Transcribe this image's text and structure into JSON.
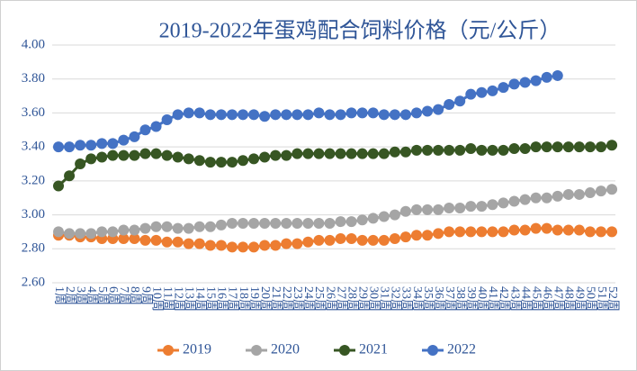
{
  "chart_data": {
    "type": "line",
    "title": "2019-2022年蛋鸡配合饲料价格（元/公斤）",
    "categories": [
      "1周",
      "2周",
      "3周",
      "4周",
      "5周",
      "6周",
      "7周",
      "8周",
      "9周",
      "10周",
      "11周",
      "12周",
      "13周",
      "14周",
      "15周",
      "16周",
      "17周",
      "18周",
      "19周",
      "20周",
      "21周",
      "22周",
      "23周",
      "24周",
      "25周",
      "26周",
      "27周",
      "28周",
      "29周",
      "30周",
      "31周",
      "32周",
      "33周",
      "34周",
      "35周",
      "36周",
      "37周",
      "38周",
      "39周",
      "40周",
      "41周",
      "42周",
      "43周",
      "44周",
      "45周",
      "46周",
      "47周",
      "48周",
      "49周",
      "50周",
      "51周",
      "52周"
    ],
    "series": [
      {
        "name": "2019",
        "color": "#ed7d31",
        "values": [
          2.88,
          2.88,
          2.87,
          2.87,
          2.86,
          2.86,
          2.86,
          2.86,
          2.85,
          2.85,
          2.84,
          2.84,
          2.83,
          2.83,
          2.82,
          2.82,
          2.81,
          2.81,
          2.81,
          2.82,
          2.82,
          2.83,
          2.83,
          2.84,
          2.85,
          2.85,
          2.86,
          2.86,
          2.85,
          2.85,
          2.85,
          2.86,
          2.87,
          2.88,
          2.88,
          2.89,
          2.9,
          2.9,
          2.9,
          2.9,
          2.9,
          2.9,
          2.91,
          2.91,
          2.92,
          2.92,
          2.91,
          2.91,
          2.91,
          2.9,
          2.9,
          2.9
        ]
      },
      {
        "name": "2020",
        "color": "#a5a5a5",
        "values": [
          2.9,
          2.89,
          2.89,
          2.89,
          2.9,
          2.9,
          2.91,
          2.91,
          2.92,
          2.93,
          2.93,
          2.92,
          2.92,
          2.93,
          2.93,
          2.94,
          2.95,
          2.95,
          2.95,
          2.95,
          2.95,
          2.95,
          2.95,
          2.95,
          2.95,
          2.95,
          2.96,
          2.96,
          2.97,
          2.98,
          2.99,
          3.0,
          3.02,
          3.03,
          3.03,
          3.03,
          3.04,
          3.04,
          3.05,
          3.05,
          3.06,
          3.07,
          3.08,
          3.09,
          3.1,
          3.1,
          3.11,
          3.12,
          3.12,
          3.13,
          3.14,
          3.15
        ]
      },
      {
        "name": "2021",
        "color": "#375623",
        "values": [
          3.17,
          3.23,
          3.3,
          3.33,
          3.34,
          3.35,
          3.35,
          3.35,
          3.36,
          3.36,
          3.35,
          3.34,
          3.33,
          3.32,
          3.31,
          3.31,
          3.31,
          3.32,
          3.33,
          3.34,
          3.35,
          3.35,
          3.36,
          3.36,
          3.36,
          3.36,
          3.36,
          3.36,
          3.36,
          3.36,
          3.36,
          3.37,
          3.37,
          3.38,
          3.38,
          3.38,
          3.38,
          3.38,
          3.39,
          3.38,
          3.38,
          3.38,
          3.39,
          3.39,
          3.4,
          3.4,
          3.4,
          3.4,
          3.4,
          3.4,
          3.4,
          3.41
        ]
      },
      {
        "name": "2022",
        "color": "#4472c4",
        "values": [
          3.4,
          3.4,
          3.41,
          3.41,
          3.42,
          3.42,
          3.44,
          3.46,
          3.5,
          3.52,
          3.56,
          3.59,
          3.6,
          3.6,
          3.59,
          3.59,
          3.59,
          3.59,
          3.59,
          3.58,
          3.59,
          3.59,
          3.59,
          3.59,
          3.6,
          3.59,
          3.59,
          3.6,
          3.6,
          3.6,
          3.59,
          3.59,
          3.59,
          3.6,
          3.61,
          3.62,
          3.65,
          3.67,
          3.71,
          3.72,
          3.73,
          3.75,
          3.77,
          3.78,
          3.79,
          3.81,
          3.82,
          null,
          null,
          null,
          null,
          null
        ]
      }
    ],
    "ylim": [
      2.6,
      4.0
    ],
    "yticks": [
      {
        "value": 2.6,
        "label": "2.60"
      },
      {
        "value": 2.8,
        "label": "2.80"
      },
      {
        "value": 3.0,
        "label": "3.00"
      },
      {
        "value": 3.2,
        "label": "3.20"
      },
      {
        "value": 3.4,
        "label": "3.40"
      },
      {
        "value": 3.6,
        "label": "3.60"
      },
      {
        "value": 3.8,
        "label": "3.80"
      },
      {
        "value": 4.0,
        "label": "4.00"
      }
    ],
    "grid": true,
    "legend": "bottom"
  }
}
